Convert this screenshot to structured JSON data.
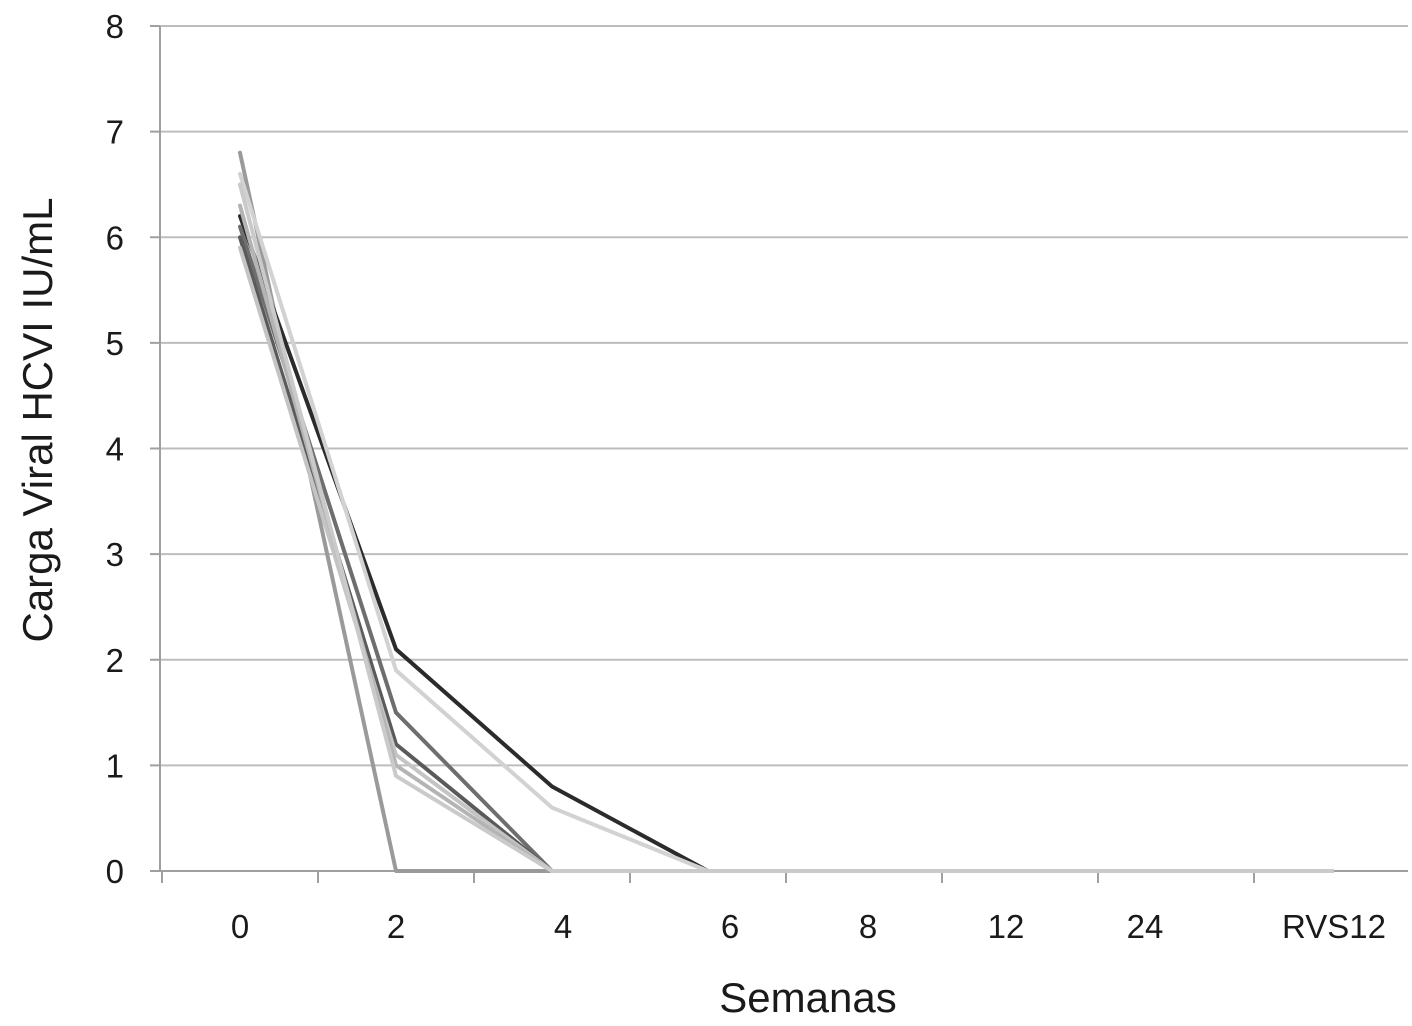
{
  "chart_data": {
    "type": "line",
    "title": "",
    "xlabel": "Semanas",
    "ylabel": "Carga Viral HCVI IU/mL",
    "categories": [
      "0",
      "2",
      "4",
      "6",
      "8",
      "12",
      "24",
      "RVS12"
    ],
    "ylim": [
      0,
      8
    ],
    "yticks": [
      0,
      1,
      2,
      3,
      4,
      5,
      6,
      7,
      8
    ],
    "grid": true,
    "legend": "none",
    "series": [
      {
        "color": "#9a9a9a",
        "values": [
          6.8,
          0,
          0,
          0,
          0,
          0,
          0,
          0
        ]
      },
      {
        "color": "#2b2b2b",
        "values": [
          6.2,
          2.1,
          0.8,
          0,
          0,
          0,
          0,
          0
        ]
      },
      {
        "color": "#d2d2d2",
        "values": [
          6.6,
          1.9,
          0.6,
          0,
          0,
          0,
          0,
          0
        ]
      },
      {
        "color": "#6e6e6e",
        "values": [
          6.1,
          1.5,
          0,
          0,
          0,
          0,
          0,
          0
        ]
      },
      {
        "color": "#5a5a5a",
        "values": [
          6.0,
          1.2,
          0,
          0,
          0,
          0,
          0,
          0
        ]
      },
      {
        "color": "#c4c4c4",
        "values": [
          5.9,
          1.1,
          0,
          0,
          0,
          0,
          0,
          0
        ]
      },
      {
        "color": "#b4b4b4",
        "values": [
          6.3,
          1.0,
          0,
          0,
          0,
          0,
          0,
          0
        ]
      },
      {
        "color": "#cacaca",
        "values": [
          6.5,
          0.9,
          0,
          0,
          0,
          0,
          0,
          0
        ]
      }
    ]
  }
}
